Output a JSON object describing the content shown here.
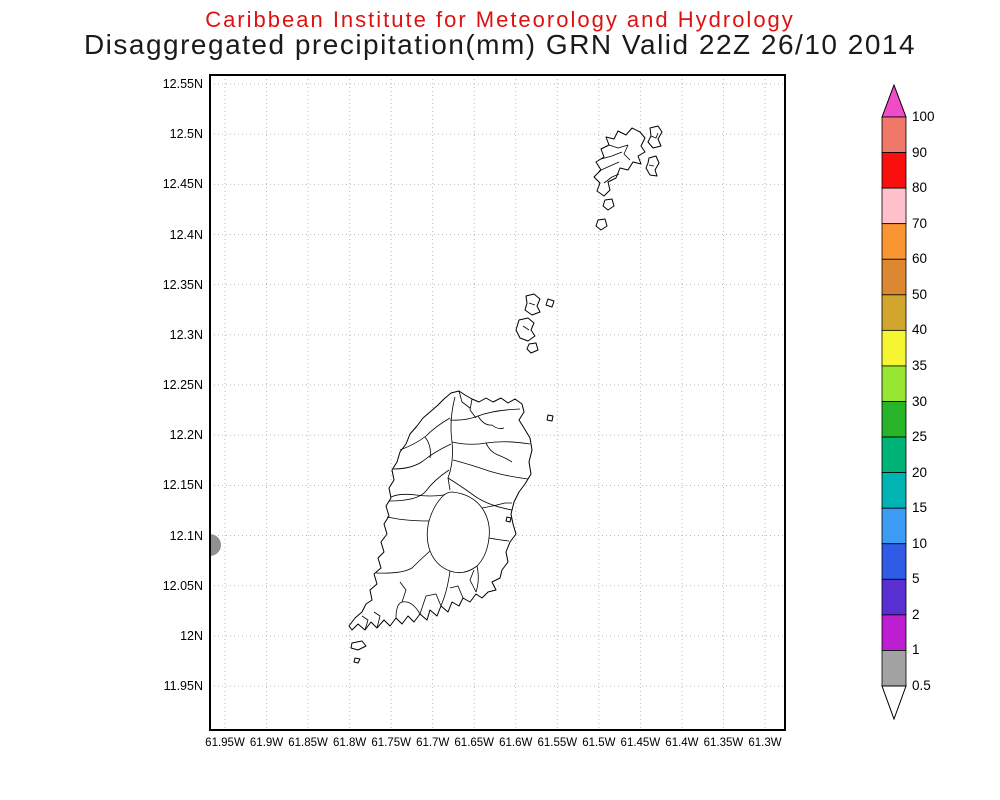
{
  "header": {
    "institute": "Caribbean Institute for Meteorology and Hydrology",
    "plot_title": "Disaggregated precipitation(mm) GRN Valid 22Z 26/10 2014"
  },
  "axes": {
    "y_labels": [
      "12.55N",
      "12.5N",
      "12.45N",
      "12.4N",
      "12.35N",
      "12.3N",
      "12.25N",
      "12.2N",
      "12.15N",
      "12.1N",
      "12.05N",
      "12N",
      "11.95N"
    ],
    "x_labels": [
      "61.95W",
      "61.9W",
      "61.85W",
      "61.8W",
      "61.75W",
      "61.7W",
      "61.65W",
      "61.6W",
      "61.55W",
      "61.5W",
      "61.45W",
      "61.4W",
      "61.35W",
      "61.3W"
    ]
  },
  "colorbar": {
    "labels": [
      "100",
      "90",
      "80",
      "70",
      "60",
      "50",
      "40",
      "35",
      "30",
      "25",
      "20",
      "15",
      "10",
      "5",
      "2",
      "1",
      "0.5"
    ],
    "band_colors": [
      "#f07868",
      "#fa0f0f",
      "#ffc0cb",
      "#fa9632",
      "#dc8732",
      "#d2a52d",
      "#f5f532",
      "#96e632",
      "#28b428",
      "#00b478",
      "#00b4b4",
      "#3c9cf5",
      "#2f5be6",
      "#5a2fd2",
      "#be1ed2",
      "#a3a3a3"
    ],
    "top_arrow_color": "#f04cc8",
    "bottom_arrow_color": "#ffffff"
  },
  "colors": {
    "title_red": "#dd1111",
    "subtitle_color": "#1a1a1a",
    "grid": "#bbbbbb",
    "frame": "#000000",
    "coastline": "#000000",
    "overflow_gray": "#909090"
  },
  "chart_data": {
    "type": "map",
    "title": "Disaggregated precipitation(mm) GRN Valid 22Z 26/10 2014",
    "region": "Grenada, Carriacou and the southern Grenadines",
    "units": "mm",
    "colorbar_levels_mm": [
      100,
      90,
      80,
      70,
      60,
      50,
      40,
      35,
      30,
      25,
      20,
      15,
      10,
      5,
      2,
      1,
      0.5
    ],
    "lat_ticks": [
      "12.55N",
      "12.5N",
      "12.45N",
      "12.4N",
      "12.35N",
      "12.3N",
      "12.25N",
      "12.2N",
      "12.15N",
      "12.1N",
      "12.05N",
      "12N",
      "11.95N"
    ],
    "lon_ticks": [
      "61.95W",
      "61.9W",
      "61.85W",
      "61.8W",
      "61.75W",
      "61.7W",
      "61.65W",
      "61.6W",
      "61.55W",
      "61.5W",
      "61.45W",
      "61.4W",
      "61.35W",
      "61.3W"
    ],
    "shading_observed": "No shaded precipitation over the islands (below 0.5 mm); a single gray patch (0.5-1 mm class) clipped at the western plot edge near 12.1N"
  }
}
